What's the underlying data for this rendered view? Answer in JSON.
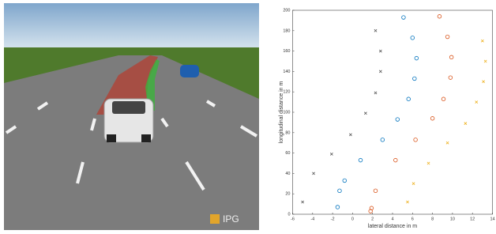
{
  "scene": {
    "logo": "IPG"
  },
  "chart_data": {
    "type": "scatter",
    "xlabel": "lateral distance in m",
    "ylabel": "longitudinal distance in m",
    "xlim": [
      -6,
      14
    ],
    "xticks": [
      -6,
      -4,
      -2,
      0,
      2,
      4,
      6,
      8,
      10,
      12,
      14
    ],
    "ylim": [
      0,
      200
    ],
    "yticks": [
      0,
      20,
      40,
      60,
      80,
      100,
      120,
      140,
      160,
      180,
      200
    ],
    "series": [
      {
        "color": "#0072bd",
        "marker": "o",
        "x": [
          -1.5,
          -1.3,
          -0.8,
          0.8,
          3.0,
          4.5,
          5.6,
          6.2,
          6.4,
          6.0,
          5.1
        ],
        "values": [
          7,
          23,
          33,
          53,
          73,
          93,
          113,
          133,
          153,
          173,
          193
        ]
      },
      {
        "color": "#d95319",
        "marker": "o",
        "x": [
          1.9,
          1.8,
          2.3,
          4.3,
          6.3,
          8.0,
          9.1,
          9.8,
          9.9,
          9.5,
          8.7
        ],
        "values": [
          6,
          3,
          23,
          53,
          73,
          94,
          113,
          134,
          154,
          174,
          194
        ]
      },
      {
        "color": "#edb120",
        "marker": "x",
        "x": [
          5.5,
          6.1,
          7.6,
          9.5,
          11.3,
          12.4,
          13.1,
          13.3,
          13.0
        ],
        "values": [
          12,
          30,
          50,
          70,
          89,
          110,
          130,
          150,
          170
        ]
      },
      {
        "color": "#555555",
        "marker": "x",
        "x": [
          -5.0,
          -3.9,
          -2.1,
          -0.2,
          1.3,
          2.3,
          2.8,
          2.8,
          2.3
        ],
        "values": [
          12,
          40,
          59,
          78,
          99,
          119,
          140,
          160,
          180
        ]
      }
    ]
  }
}
